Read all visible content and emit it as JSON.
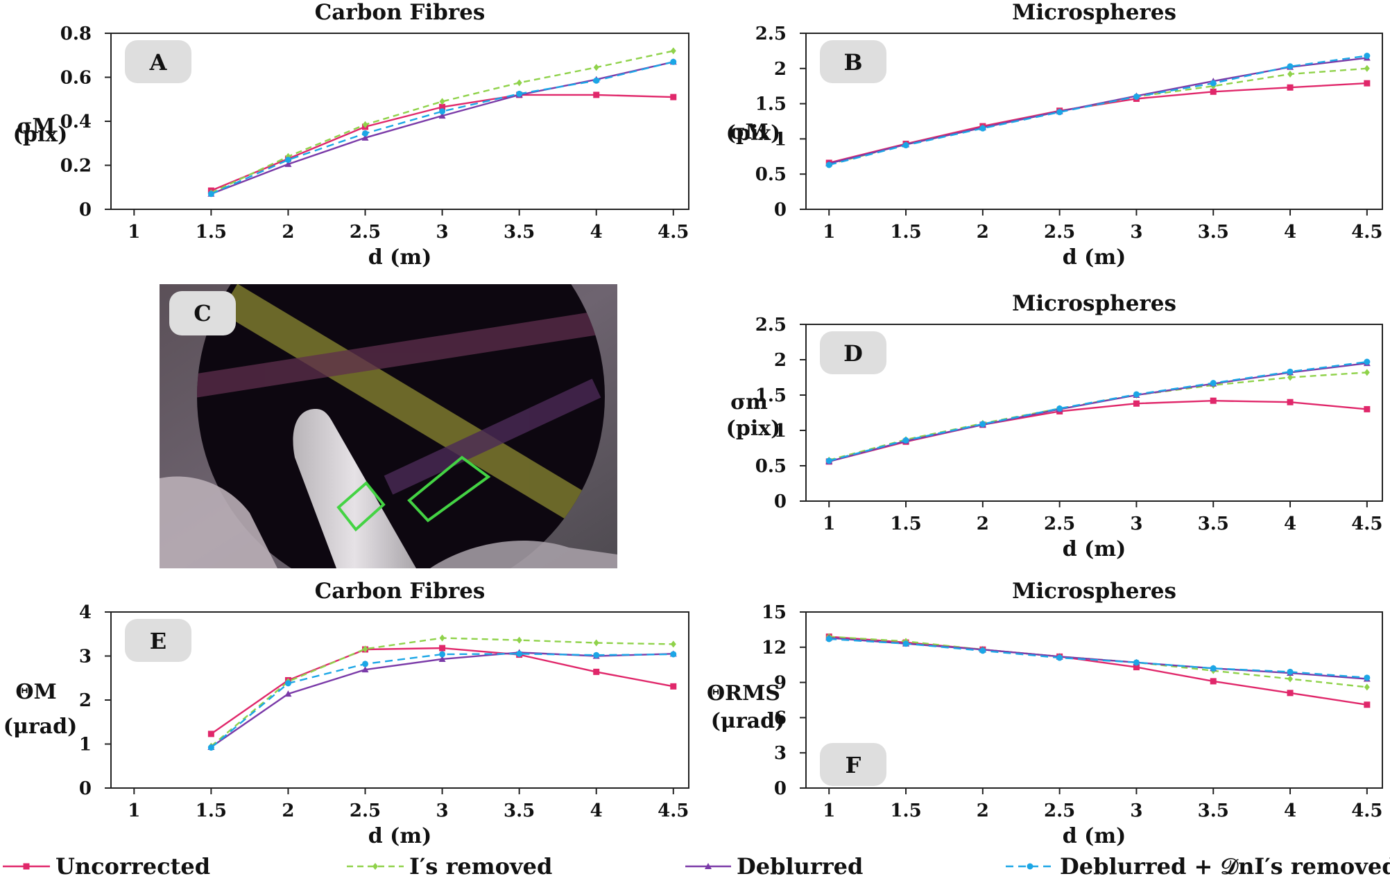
{
  "series_styles": [
    {
      "key": "uncorrected",
      "color": "#e0276a",
      "dash": "",
      "marker": "square"
    },
    {
      "key": "is_removed",
      "color": "#8fd24a",
      "dash": "9,6",
      "marker": "diamond"
    },
    {
      "key": "deblurred",
      "color": "#7a3aa8",
      "dash": "",
      "marker": "triangle"
    },
    {
      "key": "deblurred_dn_removed",
      "color": "#1ba6e6",
      "dash": "11,7",
      "marker": "circle"
    }
  ],
  "legend": {
    "items": [
      {
        "label": "Uncorrected",
        "style": 0
      },
      {
        "label": "I′s removed",
        "style": 1
      },
      {
        "label": "Deblurred",
        "style": 2
      },
      {
        "label": "Deblurred + 𝒟nI′s removed",
        "style": 3
      }
    ]
  },
  "image_panel": {
    "letter": "C",
    "regions": [
      {
        "label": "roi-1"
      },
      {
        "label": "roi-2"
      }
    ]
  },
  "chart_data": [
    {
      "type": "line",
      "letter": "A",
      "title": "Carbon Fibres",
      "xlabel": "d (m)",
      "ylabel": [
        "σM",
        "(pix)"
      ],
      "xlim": [
        0.85,
        4.6
      ],
      "ylim": [
        0,
        0.8
      ],
      "xticks": [
        1,
        1.5,
        2,
        2.5,
        3,
        3.5,
        4,
        4.5
      ],
      "yticks": [
        0,
        0.2,
        0.4,
        0.6,
        0.8
      ],
      "x": [
        1.5,
        2,
        2.5,
        3,
        3.5,
        4,
        4.5
      ],
      "series": [
        {
          "style": 0,
          "values": [
            0.085,
            0.23,
            0.375,
            0.465,
            0.52,
            0.52,
            0.51
          ]
        },
        {
          "style": 1,
          "values": [
            0.075,
            0.24,
            0.385,
            0.49,
            0.575,
            0.645,
            0.72
          ]
        },
        {
          "style": 2,
          "values": [
            0.07,
            0.205,
            0.325,
            0.425,
            0.52,
            0.59,
            0.67
          ]
        },
        {
          "style": 3,
          "values": [
            0.07,
            0.225,
            0.345,
            0.445,
            0.525,
            0.585,
            0.67
          ]
        }
      ]
    },
    {
      "type": "line",
      "letter": "B",
      "title": "Microspheres",
      "xlabel": "d (m)",
      "ylabel": [
        "σM",
        "(pix)"
      ],
      "xlim": [
        0.85,
        4.6
      ],
      "ylim": [
        0,
        2.5
      ],
      "xticks": [
        1,
        1.5,
        2,
        2.5,
        3,
        3.5,
        4,
        4.5
      ],
      "yticks": [
        0,
        0.5,
        1,
        1.5,
        2,
        2.5
      ],
      "x": [
        1,
        1.5,
        2,
        2.5,
        3,
        3.5,
        4,
        4.5
      ],
      "series": [
        {
          "style": 0,
          "values": [
            0.66,
            0.93,
            1.18,
            1.4,
            1.57,
            1.67,
            1.73,
            1.79
          ]
        },
        {
          "style": 1,
          "values": [
            0.64,
            0.92,
            1.16,
            1.39,
            1.6,
            1.75,
            1.92,
            2.0
          ]
        },
        {
          "style": 2,
          "values": [
            0.65,
            0.92,
            1.16,
            1.39,
            1.61,
            1.82,
            2.02,
            2.15
          ]
        },
        {
          "style": 3,
          "values": [
            0.63,
            0.91,
            1.15,
            1.38,
            1.6,
            1.79,
            2.03,
            2.18
          ]
        }
      ]
    },
    {
      "type": "line",
      "letter": "D",
      "title": "Microspheres",
      "xlabel": "d (m)",
      "ylabel": [
        "σm",
        "(pix)"
      ],
      "xlim": [
        0.85,
        4.6
      ],
      "ylim": [
        0,
        2.5
      ],
      "xticks": [
        1,
        1.5,
        2,
        2.5,
        3,
        3.5,
        4,
        4.5
      ],
      "yticks": [
        0,
        0.5,
        1,
        1.5,
        2,
        2.5
      ],
      "x": [
        1,
        1.5,
        2,
        2.5,
        3,
        3.5,
        4,
        4.5
      ],
      "series": [
        {
          "style": 0,
          "values": [
            0.56,
            0.84,
            1.08,
            1.27,
            1.38,
            1.42,
            1.4,
            1.3
          ]
        },
        {
          "style": 1,
          "values": [
            0.58,
            0.87,
            1.1,
            1.31,
            1.5,
            1.64,
            1.75,
            1.82
          ]
        },
        {
          "style": 2,
          "values": [
            0.56,
            0.85,
            1.08,
            1.3,
            1.5,
            1.66,
            1.82,
            1.95
          ]
        },
        {
          "style": 3,
          "values": [
            0.57,
            0.86,
            1.09,
            1.31,
            1.51,
            1.67,
            1.83,
            1.97
          ]
        }
      ]
    },
    {
      "type": "line",
      "letter": "E",
      "title": "Carbon Fibres",
      "xlabel": "d (m)",
      "ylabel": [
        "ΘM",
        "(μrad)"
      ],
      "xlim": [
        0.85,
        4.6
      ],
      "ylim": [
        0,
        4
      ],
      "xticks": [
        1,
        1.5,
        2,
        2.5,
        3,
        3.5,
        4,
        4.5
      ],
      "yticks": [
        0,
        1,
        2,
        3,
        4
      ],
      "x": [
        1.5,
        2,
        2.5,
        3,
        3.5,
        4,
        4.5
      ],
      "series": [
        {
          "style": 0,
          "values": [
            1.23,
            2.45,
            3.15,
            3.18,
            3.03,
            2.64,
            2.31
          ]
        },
        {
          "style": 1,
          "values": [
            0.95,
            2.42,
            3.16,
            3.41,
            3.36,
            3.3,
            3.27
          ]
        },
        {
          "style": 2,
          "values": [
            0.93,
            2.14,
            2.69,
            2.93,
            3.08,
            3.0,
            3.05
          ]
        },
        {
          "style": 3,
          "values": [
            0.92,
            2.38,
            2.82,
            3.04,
            3.05,
            3.02,
            3.04
          ]
        }
      ]
    },
    {
      "type": "line",
      "letter": "F",
      "title": "Microspheres",
      "xlabel": "d (m)",
      "ylabel": [
        "ΘRMS",
        "(μrad)"
      ],
      "xlim": [
        0.85,
        4.6
      ],
      "ylim": [
        0,
        15
      ],
      "xticks": [
        1,
        1.5,
        2,
        2.5,
        3,
        3.5,
        4,
        4.5
      ],
      "yticks": [
        0,
        3,
        6,
        9,
        12,
        15
      ],
      "x": [
        1,
        1.5,
        2,
        2.5,
        3,
        3.5,
        4,
        4.5
      ],
      "series": [
        {
          "style": 0,
          "values": [
            12.9,
            12.4,
            11.8,
            11.2,
            10.3,
            9.1,
            8.1,
            7.1
          ]
        },
        {
          "style": 1,
          "values": [
            12.9,
            12.5,
            11.8,
            11.2,
            10.7,
            10.0,
            9.3,
            8.6
          ]
        },
        {
          "style": 2,
          "values": [
            12.8,
            12.3,
            11.8,
            11.2,
            10.7,
            10.2,
            9.8,
            9.3
          ]
        },
        {
          "style": 3,
          "values": [
            12.7,
            12.3,
            11.7,
            11.1,
            10.7,
            10.2,
            9.9,
            9.4
          ]
        }
      ]
    }
  ]
}
